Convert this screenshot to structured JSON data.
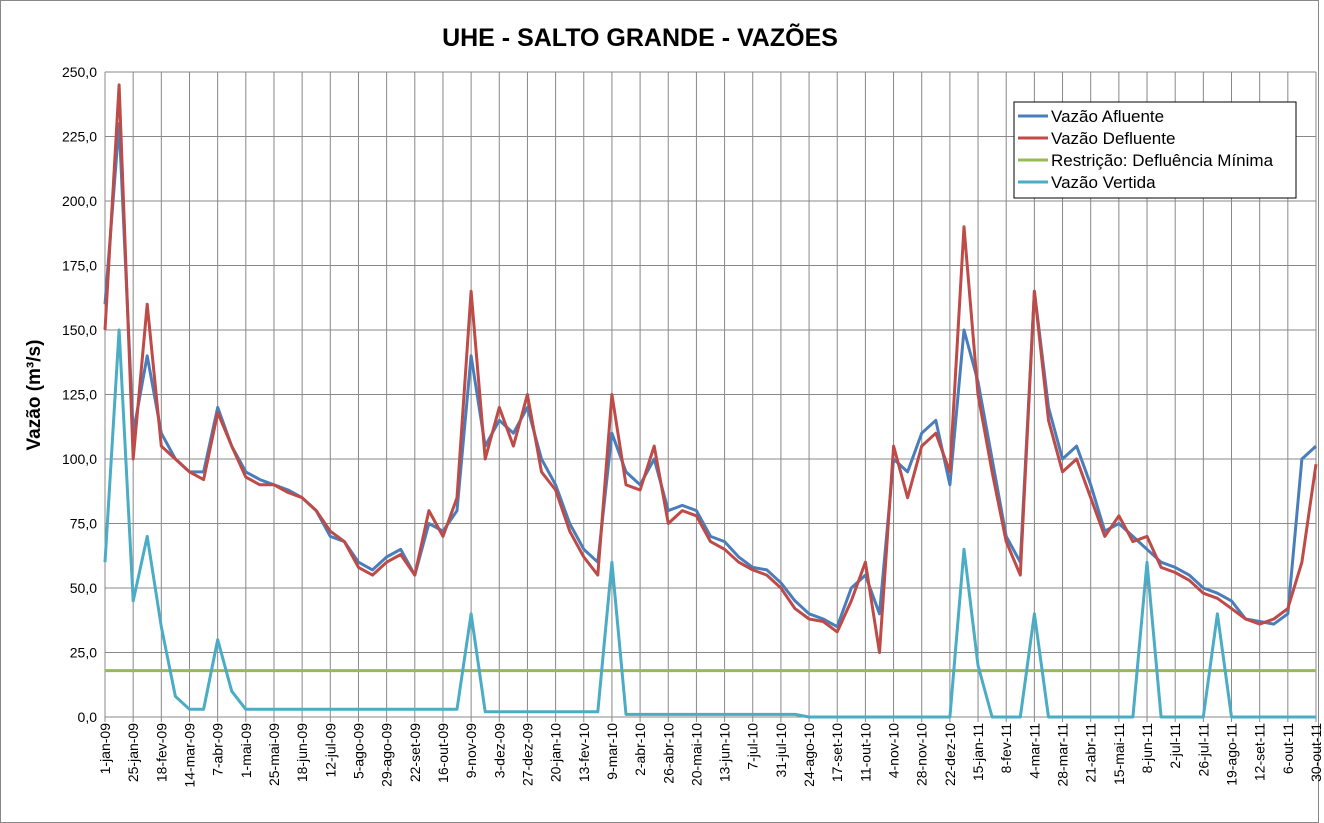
{
  "chart_data": {
    "type": "line",
    "title": "UHE - SALTO GRANDE - VAZÕES",
    "y_label": "Vazão (m³/s)",
    "categories": [
      "1-jan-09",
      null,
      "25-jan-09",
      null,
      "18-fev-09",
      null,
      "14-mar-09",
      null,
      "7-abr-09",
      null,
      "1-mai-09",
      null,
      "25-mai-09",
      null,
      "18-jun-09",
      null,
      "12-jul-09",
      null,
      "5-ago-09",
      null,
      "29-ago-09",
      null,
      "22-set-09",
      null,
      "16-out-09",
      null,
      "9-nov-09",
      null,
      "3-dez-09",
      null,
      "27-dez-09",
      null,
      "20-jan-10",
      null,
      "13-fev-10",
      null,
      "9-mar-10",
      null,
      "2-abr-10",
      null,
      "26-abr-10",
      null,
      "20-mai-10",
      null,
      "13-jun-10",
      null,
      "7-jul-10",
      null,
      "31-jul-10",
      null,
      "24-ago-10",
      null,
      "17-set-10",
      null,
      "11-out-10",
      null,
      "4-nov-10",
      null,
      "28-nov-10",
      null,
      "22-dez-10",
      null,
      "15-jan-11",
      null,
      "8-fev-11",
      null,
      "4-mar-11",
      null,
      "28-mar-11",
      null,
      "21-abr-11",
      null,
      "15-mai-11",
      null,
      "8-jun-11",
      null,
      "2-jul-11",
      null,
      "26-jul-11",
      null,
      "19-ago-11",
      null,
      "12-set-11",
      null,
      "6-out-11",
      null,
      "30-out-11"
    ],
    "series": [
      {
        "name": "Vazão Afluente",
        "color": "#4a7ebb",
        "values": [
          160,
          230,
          110,
          140,
          110,
          100,
          95,
          95,
          120,
          105,
          95,
          92,
          90,
          88,
          85,
          80,
          70,
          68,
          60,
          57,
          62,
          65,
          55,
          75,
          72,
          80,
          140,
          105,
          115,
          110,
          120,
          100,
          90,
          75,
          65,
          60,
          110,
          95,
          90,
          100,
          80,
          82,
          80,
          70,
          68,
          62,
          58,
          57,
          52,
          45,
          40,
          38,
          35,
          50,
          55,
          40,
          100,
          95,
          110,
          115,
          90,
          150,
          130,
          100,
          70,
          60,
          165,
          120,
          100,
          105,
          90,
          72,
          75,
          70,
          65,
          60,
          58,
          55,
          50,
          48,
          45,
          38,
          37,
          36,
          40,
          100,
          105
        ]
      },
      {
        "name": "Vazão Defluente",
        "color": "#be4b48",
        "values": [
          150,
          245,
          100,
          160,
          105,
          100,
          95,
          92,
          118,
          105,
          93,
          90,
          90,
          87,
          85,
          80,
          72,
          68,
          58,
          55,
          60,
          63,
          55,
          80,
          70,
          85,
          165,
          100,
          120,
          105,
          125,
          95,
          88,
          72,
          62,
          55,
          125,
          90,
          88,
          105,
          75,
          80,
          78,
          68,
          65,
          60,
          57,
          55,
          50,
          42,
          38,
          37,
          33,
          45,
          60,
          25,
          105,
          85,
          105,
          110,
          95,
          190,
          125,
          95,
          68,
          55,
          165,
          115,
          95,
          100,
          85,
          70,
          78,
          68,
          70,
          58,
          56,
          53,
          48,
          46,
          42,
          38,
          36,
          38,
          42,
          60,
          98
        ]
      },
      {
        "name": "Restrição: Defluência Mínima",
        "color": "#98b954",
        "values": [
          18,
          18,
          18,
          18,
          18,
          18,
          18,
          18,
          18,
          18,
          18,
          18,
          18,
          18,
          18,
          18,
          18,
          18,
          18,
          18,
          18,
          18,
          18,
          18,
          18,
          18,
          18,
          18,
          18,
          18,
          18,
          18,
          18,
          18,
          18,
          18,
          18,
          18,
          18,
          18,
          18,
          18,
          18,
          18,
          18,
          18,
          18,
          18,
          18,
          18,
          18,
          18,
          18,
          18,
          18,
          18,
          18,
          18,
          18,
          18,
          18,
          18,
          18,
          18,
          18,
          18,
          18,
          18,
          18,
          18,
          18,
          18,
          18,
          18,
          18,
          18,
          18,
          18,
          18,
          18,
          18,
          18,
          18,
          18,
          18,
          18,
          18
        ]
      },
      {
        "name": "Vazão Vertida",
        "color": "#4bacc6",
        "values": [
          60,
          150,
          45,
          70,
          35,
          8,
          3,
          3,
          30,
          10,
          3,
          3,
          3,
          3,
          3,
          3,
          3,
          3,
          3,
          3,
          3,
          3,
          3,
          3,
          3,
          3,
          40,
          2,
          2,
          2,
          2,
          2,
          2,
          2,
          2,
          2,
          60,
          1,
          1,
          1,
          1,
          1,
          1,
          1,
          1,
          1,
          1,
          1,
          1,
          1,
          0,
          0,
          0,
          0,
          0,
          0,
          0,
          0,
          0,
          0,
          0,
          65,
          20,
          0,
          0,
          0,
          40,
          0,
          0,
          0,
          0,
          0,
          0,
          0,
          60,
          0,
          0,
          0,
          0,
          40,
          0,
          0,
          0,
          0,
          0,
          0,
          0
        ]
      }
    ],
    "ylim": [
      0,
      250
    ],
    "yticks": [
      {
        "value": 0,
        "label": "0,0"
      },
      {
        "value": 25,
        "label": "25,0"
      },
      {
        "value": 50,
        "label": "50,0"
      },
      {
        "value": 75,
        "label": "75,0"
      },
      {
        "value": 100,
        "label": "100,0"
      },
      {
        "value": 125,
        "label": "125,0"
      },
      {
        "value": 150,
        "label": "150,0"
      },
      {
        "value": 175,
        "label": "175,0"
      },
      {
        "value": 200,
        "label": "200,0"
      },
      {
        "value": 225,
        "label": "225,0"
      },
      {
        "value": 250,
        "label": "250,0"
      }
    ],
    "grid": true,
    "legend": "upper right"
  }
}
